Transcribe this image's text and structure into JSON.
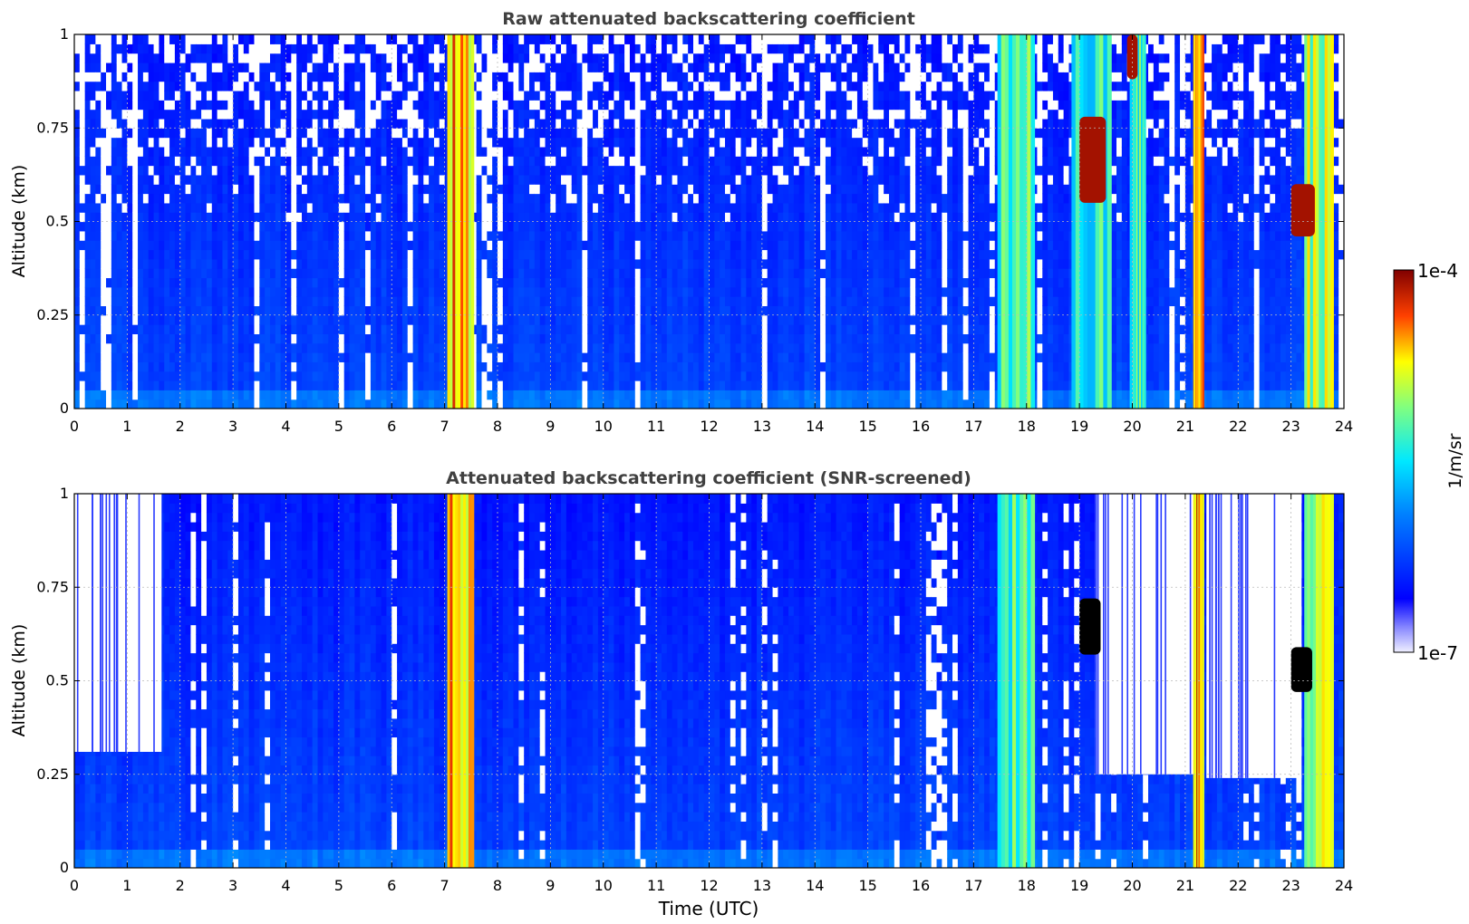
{
  "chart_data": [
    {
      "type": "heatmap",
      "title": "Raw attenuated backscattering coefficient",
      "xlabel": "",
      "ylabel": "Altitude (km)",
      "xlim": [
        0,
        24
      ],
      "ylim": [
        0,
        1
      ],
      "x_ticks": [
        "0",
        "1",
        "2",
        "3",
        "4",
        "5",
        "6",
        "7",
        "8",
        "9",
        "10",
        "11",
        "12",
        "13",
        "14",
        "15",
        "16",
        "17",
        "18",
        "19",
        "20",
        "21",
        "22",
        "23",
        "24"
      ],
      "y_ticks": [
        "0",
        "0.25",
        "0.5",
        "0.75",
        "1"
      ],
      "grid": true,
      "colorbar": {
        "min_label": "1e-7",
        "max_label": "1e-4",
        "label": "1/m/sr",
        "scale": "log"
      },
      "features": [
        {
          "kind": "background",
          "value_exp": -6.2,
          "note_color": "blue"
        },
        {
          "kind": "column",
          "x0": 7.05,
          "x1": 7.55,
          "value_exp": -4.6
        },
        {
          "kind": "column",
          "x0": 17.45,
          "x1": 18.15,
          "value_exp": -5.3
        },
        {
          "kind": "column",
          "x0": 18.85,
          "x1": 19.6,
          "value_exp": -5.4
        },
        {
          "kind": "column",
          "x0": 19.95,
          "x1": 20.25,
          "value_exp": -5.3
        },
        {
          "kind": "column",
          "x0": 21.15,
          "x1": 21.35,
          "value_exp": -4.5
        },
        {
          "kind": "column",
          "x0": 23.25,
          "x1": 23.8,
          "value_exp": -5.0
        },
        {
          "kind": "cloud",
          "x0": 19.0,
          "x1": 19.5,
          "y0": 0.55,
          "y1": 0.78,
          "value_exp": -4.1
        },
        {
          "kind": "cloud",
          "x0": 19.9,
          "x1": 20.1,
          "y0": 0.88,
          "y1": 1.0,
          "value_exp": -4.1
        },
        {
          "kind": "cloud",
          "x0": 23.0,
          "x1": 23.45,
          "y0": 0.46,
          "y1": 0.6,
          "value_exp": -4.1
        }
      ]
    },
    {
      "type": "heatmap",
      "title": "Attenuated backscattering coefficient (SNR-screened)",
      "xlabel": "Time (UTC)",
      "ylabel": "Altitude (km)",
      "xlim": [
        0,
        24
      ],
      "ylim": [
        0,
        1
      ],
      "x_ticks": [
        "0",
        "1",
        "2",
        "3",
        "4",
        "5",
        "6",
        "7",
        "8",
        "9",
        "10",
        "11",
        "12",
        "13",
        "14",
        "15",
        "16",
        "17",
        "18",
        "19",
        "20",
        "21",
        "22",
        "23",
        "24"
      ],
      "y_ticks": [
        "0",
        "0.25",
        "0.5",
        "0.75",
        "1"
      ],
      "grid": true,
      "features": [
        {
          "kind": "screened",
          "x0": 0.0,
          "x1": 1.65,
          "y0": 0.31,
          "y1": 1.0
        },
        {
          "kind": "screened",
          "x0": 19.3,
          "x1": 21.2,
          "y0": 0.25,
          "y1": 1.0
        },
        {
          "kind": "screened",
          "x0": 21.4,
          "x1": 23.2,
          "y0": 0.24,
          "y1": 1.0
        },
        {
          "kind": "column",
          "x0": 7.05,
          "x1": 7.55,
          "value_exp": -4.6
        },
        {
          "kind": "column",
          "x0": 17.45,
          "x1": 18.15,
          "value_exp": -5.3
        },
        {
          "kind": "column",
          "x0": 21.15,
          "x1": 21.35,
          "value_exp": -4.5
        },
        {
          "kind": "column",
          "x0": 23.25,
          "x1": 23.8,
          "value_exp": -5.0
        },
        {
          "kind": "cloud-black",
          "x0": 19.0,
          "x1": 19.4,
          "y0": 0.57,
          "y1": 0.72
        },
        {
          "kind": "cloud-black",
          "x0": 23.0,
          "x1": 23.4,
          "y0": 0.47,
          "y1": 0.59
        }
      ]
    }
  ]
}
